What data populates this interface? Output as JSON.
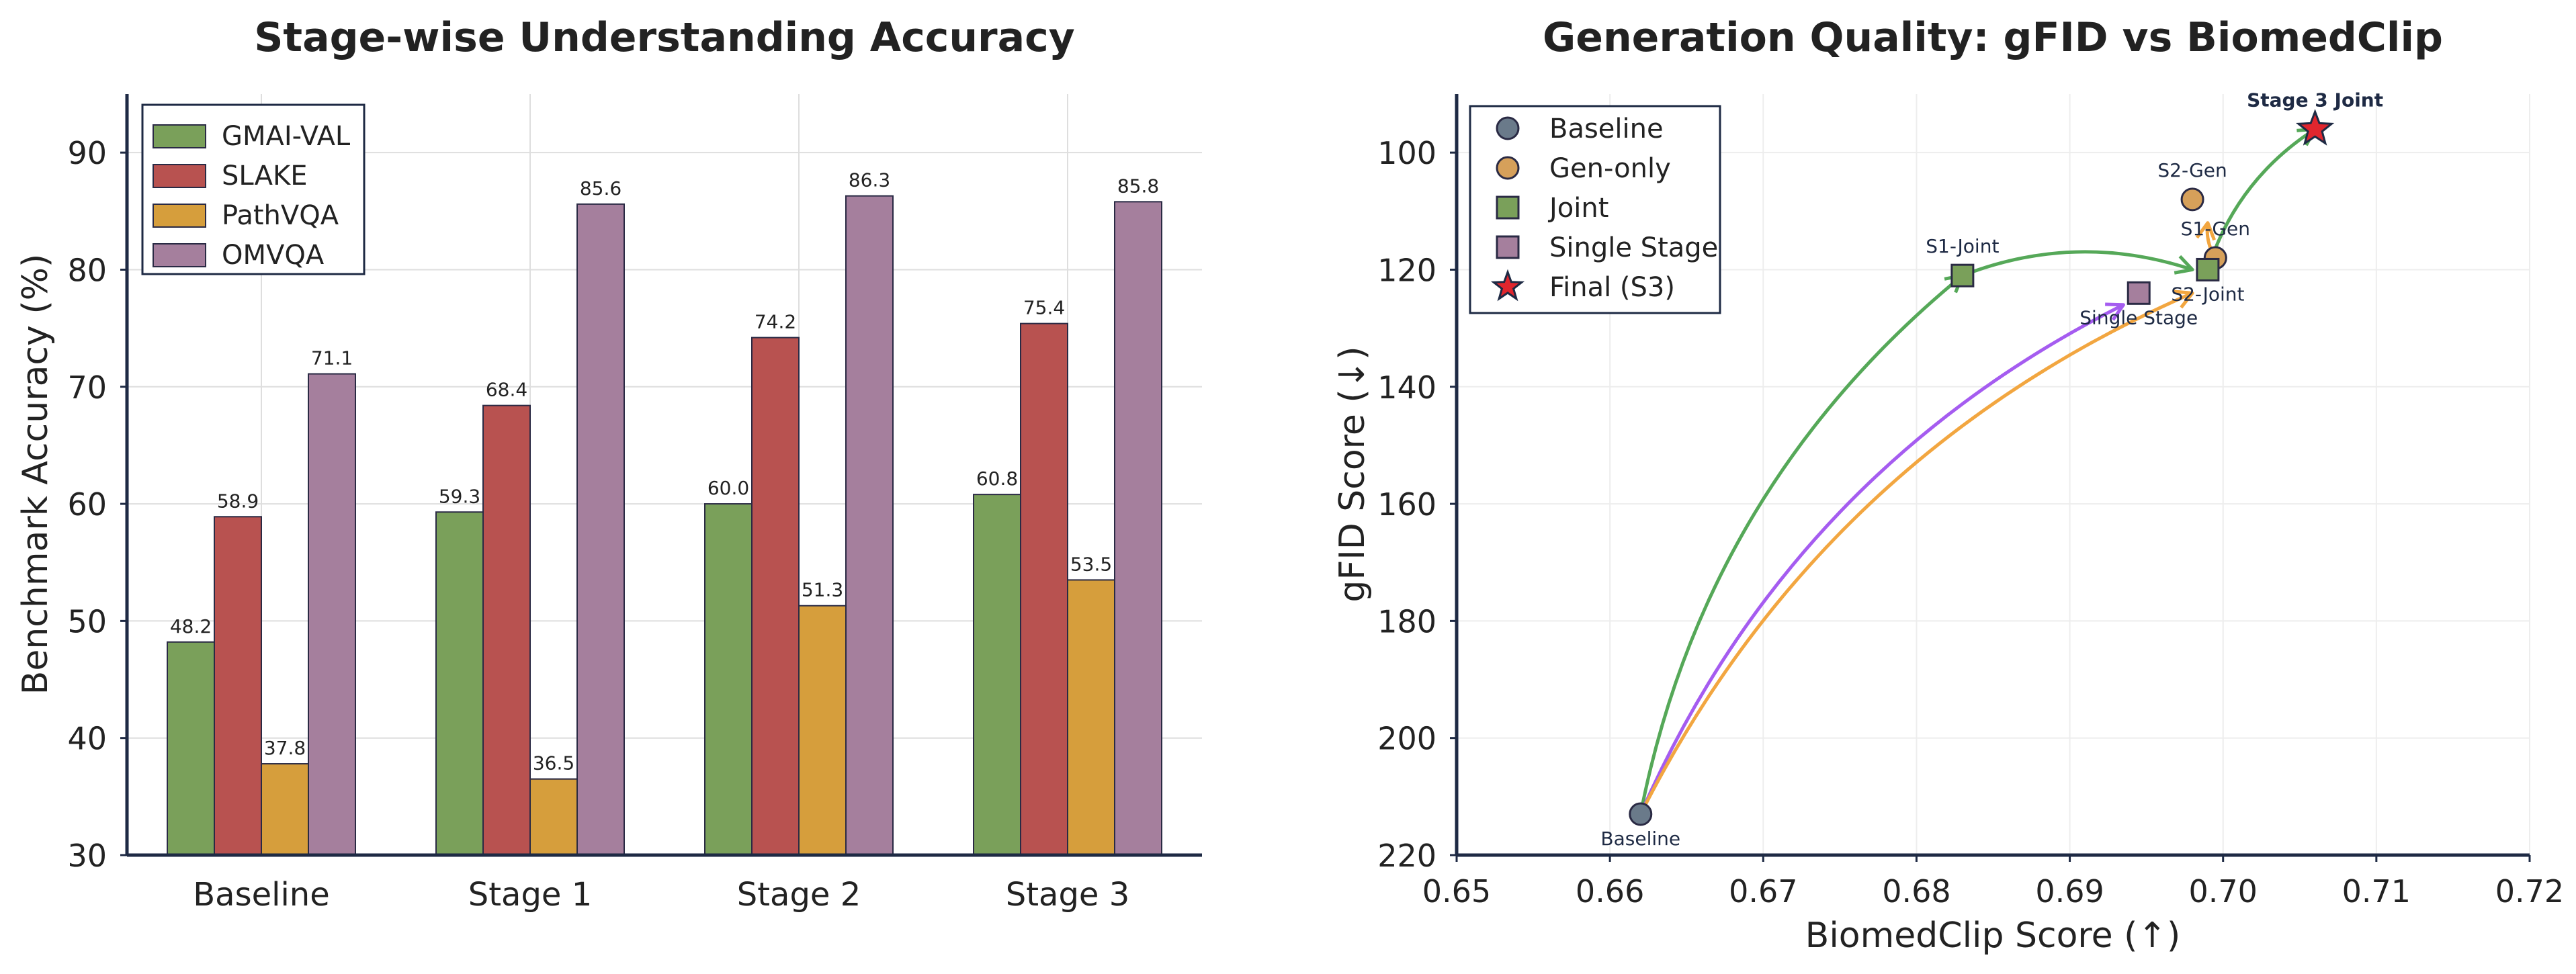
{
  "chart_data": [
    {
      "type": "bar",
      "title": "Stage-wise Understanding Accuracy",
      "xlabel": "",
      "ylabel": "Benchmark Accuracy (%)",
      "ylim": [
        30,
        95
      ],
      "yticks": [
        "30",
        "40",
        "50",
        "60",
        "70",
        "80",
        "90"
      ],
      "grid": true,
      "legend_position": "top-left",
      "categories": [
        "Baseline",
        "Stage 1",
        "Stage 2",
        "Stage 3"
      ],
      "series": [
        {
          "name": "GMAI-VAL",
          "color": "#7aa05a",
          "values": [
            48.2,
            59.3,
            60.0,
            60.8
          ],
          "labels": [
            "48.2",
            "59.3",
            "60.0",
            "60.8"
          ]
        },
        {
          "name": "SLAKE",
          "color": "#b85250",
          "values": [
            58.9,
            68.4,
            74.2,
            75.4
          ],
          "labels": [
            "58.9",
            "68.4",
            "74.2",
            "75.4"
          ]
        },
        {
          "name": "PathVQA",
          "color": "#d69e3c",
          "values": [
            37.8,
            36.5,
            51.3,
            53.5
          ],
          "labels": [
            "37.8",
            "36.5",
            "51.3",
            "53.5"
          ]
        },
        {
          "name": "OMVQA",
          "color": "#a57f9d",
          "values": [
            71.1,
            85.6,
            86.3,
            85.8
          ],
          "labels": [
            "71.1",
            "85.6",
            "86.3",
            "85.8"
          ]
        }
      ]
    },
    {
      "type": "scatter",
      "title": "Generation Quality: gFID vs BiomedClip",
      "xlabel": "BiomedClip Score (↑)",
      "ylabel": "gFID Score (↓)",
      "xlim": [
        0.65,
        0.72
      ],
      "ylim": [
        220,
        90
      ],
      "y_inverted": true,
      "xticks": [
        "0.65",
        "0.66",
        "0.67",
        "0.68",
        "0.69",
        "0.70",
        "0.71",
        "0.72"
      ],
      "yticks": [
        "100",
        "120",
        "140",
        "160",
        "180",
        "200",
        "220"
      ],
      "grid": true,
      "legend_position": "top-left",
      "legend": [
        {
          "name": "Baseline",
          "marker": "circle",
          "color": "#6a7a8a"
        },
        {
          "name": "Gen-only",
          "marker": "circle",
          "color": "#d6a05a"
        },
        {
          "name": "Joint",
          "marker": "square",
          "color": "#7aa05a"
        },
        {
          "name": "Single Stage",
          "marker": "square",
          "color": "#a57f9d"
        },
        {
          "name": "Final (S3)",
          "marker": "star",
          "color": "#e0262e"
        }
      ],
      "points": [
        {
          "label": "Baseline",
          "x": 0.662,
          "y": 213,
          "marker": "circle",
          "color": "#6a7a8a",
          "label_pos": "below"
        },
        {
          "label": "S1-Joint",
          "x": 0.683,
          "y": 121,
          "marker": "square",
          "color": "#7aa05a",
          "label_pos": "above"
        },
        {
          "label": "Single Stage",
          "x": 0.6945,
          "y": 124,
          "marker": "square",
          "color": "#a57f9d",
          "label_pos": "below"
        },
        {
          "label": "S2-Gen",
          "x": 0.698,
          "y": 108,
          "marker": "circle",
          "color": "#d6a05a",
          "label_pos": "above"
        },
        {
          "label": "S1-Gen",
          "x": 0.6995,
          "y": 118,
          "marker": "circle",
          "color": "#d6a05a",
          "label_pos": "above"
        },
        {
          "label": "S2-Joint",
          "x": 0.699,
          "y": 120,
          "marker": "square",
          "color": "#7aa05a",
          "label_pos": "below"
        },
        {
          "label": "Stage 3 Joint",
          "x": 0.706,
          "y": 96,
          "marker": "star",
          "color": "#e0262e",
          "label_pos": "above",
          "bold": true
        }
      ],
      "arrows": [
        {
          "from": [
            0.662,
            213
          ],
          "to": [
            0.683,
            121
          ],
          "color": "#55a858"
        },
        {
          "from": [
            0.662,
            213
          ],
          "to": [
            0.6935,
            126
          ],
          "color": "#a55cf0"
        },
        {
          "from": [
            0.662,
            213
          ],
          "to": [
            0.698,
            124
          ],
          "color": "#f2a640"
        },
        {
          "from": [
            0.683,
            121
          ],
          "to": [
            0.698,
            120
          ],
          "color": "#55a858"
        },
        {
          "from": [
            0.699,
            120
          ],
          "to": [
            0.706,
            96
          ],
          "color": "#55a858"
        },
        {
          "from": [
            0.6995,
            118
          ],
          "to": [
            0.699,
            112
          ],
          "color": "#f2a640"
        }
      ]
    }
  ]
}
